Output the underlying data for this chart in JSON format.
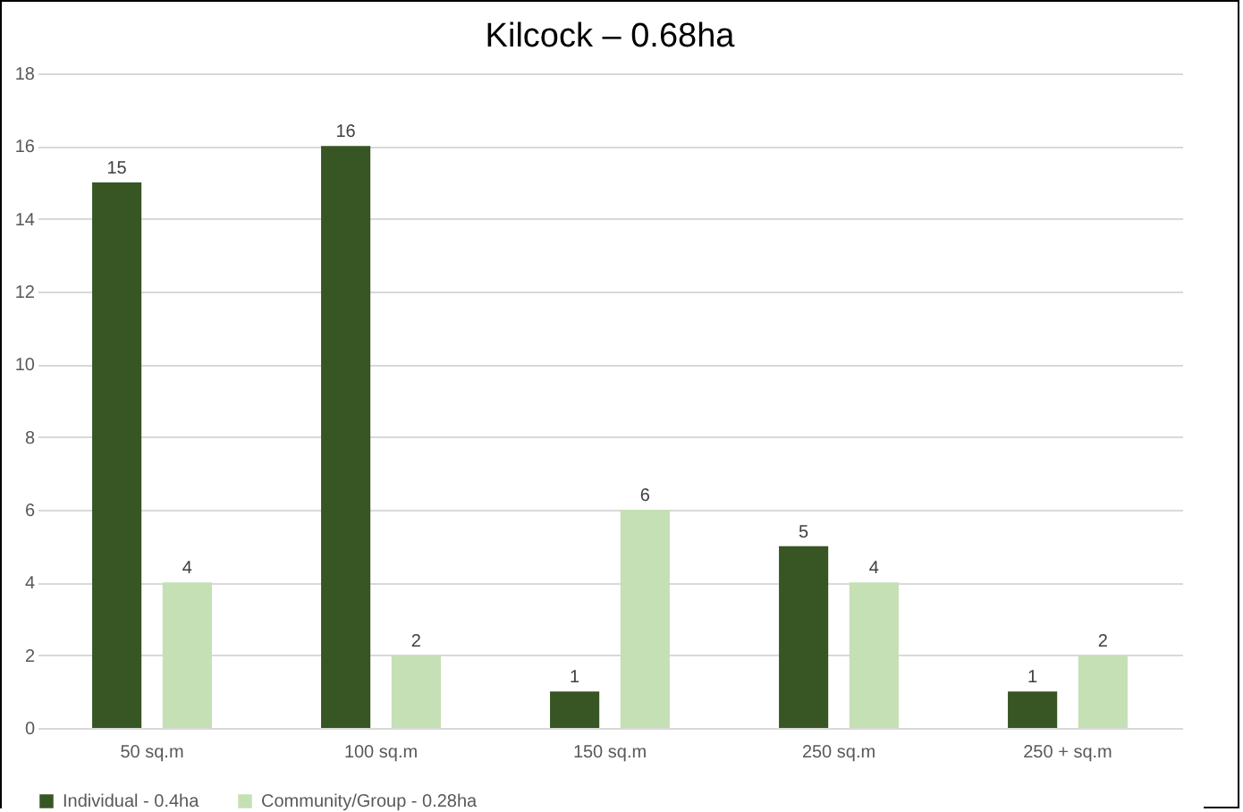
{
  "chart_data": {
    "type": "bar",
    "title": "Kilcock – 0.68ha",
    "categories": [
      "50 sq.m",
      "100 sq.m",
      "150 sq.m",
      "250 sq.m",
      "250 + sq.m"
    ],
    "series": [
      {
        "name": "Individual - 0.4ha",
        "color": "#375623",
        "values": [
          15,
          16,
          1,
          5,
          1
        ]
      },
      {
        "name": "Community/Group - 0.28ha",
        "color": "#c5e0b4",
        "values": [
          4,
          2,
          6,
          4,
          2
        ]
      }
    ],
    "ylim": [
      0,
      18
    ],
    "yticks": [
      0,
      2,
      4,
      6,
      8,
      10,
      12,
      14,
      16,
      18
    ],
    "grid": "y",
    "legend": "bottom",
    "data_labels": true
  }
}
